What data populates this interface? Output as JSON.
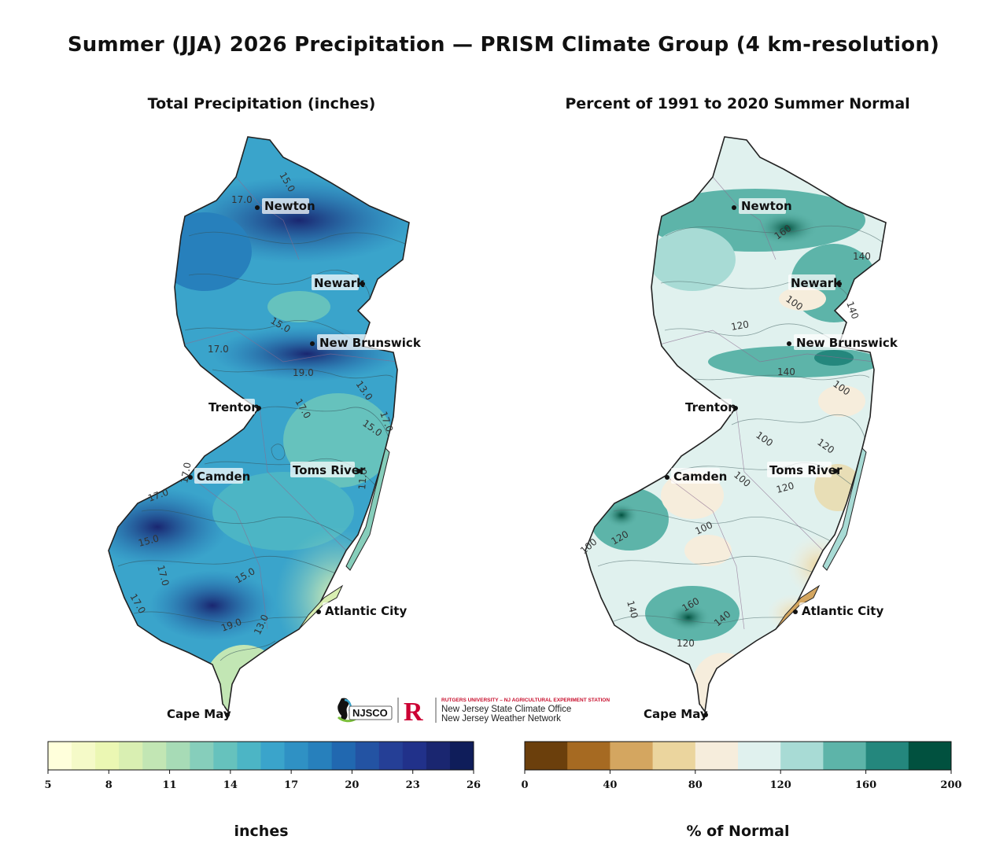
{
  "title": "Summer (JJA) 2026 Precipitation — PRISM Climate Group (4 km-resolution)",
  "left_panel": {
    "title": "Total Precipitation (inches)",
    "colorbar": {
      "ticks": [
        "5",
        "8",
        "11",
        "14",
        "17",
        "20",
        "23",
        "26"
      ],
      "label": "inches",
      "colors": [
        "#ffffdb",
        "#f5fac8",
        "#ebf7b3",
        "#d9efb2",
        "#c2e6b4",
        "#a7dbb6",
        "#86cebb",
        "#66c2bd",
        "#4cb5c5",
        "#3aa4cb",
        "#2f91c4",
        "#2780bc",
        "#2168b0",
        "#2353a3",
        "#253f96",
        "#21318a",
        "#1a2670",
        "#0f1d5a"
      ],
      "min": 5,
      "max": 26
    },
    "contour_labels": [
      "15.0",
      "17.0",
      "17.0",
      "15.0",
      "17.0",
      "19.0",
      "13.0",
      "17.0",
      "15.0",
      "17.0",
      "11.0",
      "17.0",
      "15.0",
      "17.0",
      "15.0",
      "17.0",
      "13.0",
      "19.0"
    ]
  },
  "right_panel": {
    "title": "Percent of 1991 to 2020 Summer Normal",
    "colorbar": {
      "ticks": [
        "0",
        "40",
        "80",
        "120",
        "160",
        "200"
      ],
      "label": "% of Normal",
      "colors": [
        "#6b3f0c",
        "#a66a22",
        "#d4a660",
        "#ebd59e",
        "#f6eddc",
        "#e0f1ee",
        "#a8dbd5",
        "#5db4a9",
        "#24877d",
        "#01513f"
      ],
      "min": 0,
      "max": 200
    },
    "contour_labels": [
      "160",
      "140",
      "100",
      "120",
      "140",
      "100",
      "100",
      "120",
      "100",
      "120",
      "100",
      "120",
      "140",
      "160",
      "140",
      "120",
      "100",
      "140"
    ]
  },
  "cities": [
    {
      "name": "Newton"
    },
    {
      "name": "Newark"
    },
    {
      "name": "New Brunswick"
    },
    {
      "name": "Trenton"
    },
    {
      "name": "Camden"
    },
    {
      "name": "Toms River"
    },
    {
      "name": "Atlantic City"
    },
    {
      "name": "Cape May"
    }
  ],
  "logo": {
    "org_abbrev": "NJSCO",
    "university_line": "RUTGERS UNIVERSITY – NJ AGRICULTURAL EXPERIMENT STATION",
    "line1": "New Jersey State Climate Office",
    "line2": "New Jersey Weather Network"
  }
}
